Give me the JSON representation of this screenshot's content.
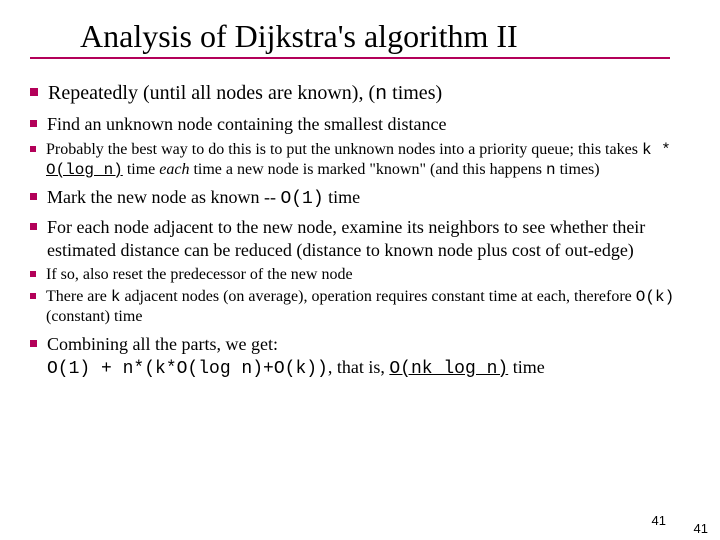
{
  "colors": {
    "bullet": "#b30059",
    "underline": "#b30059",
    "text": "#000000",
    "background": "#ffffff"
  },
  "title": "Analysis of Dijkstra's algorithm II",
  "page_number_inner": "41",
  "page_number_outer": "41",
  "b1": {
    "pre": "Repeatedly (until all nodes are known), (",
    "code": "n",
    "post": " times)"
  },
  "b2a": "Find an unknown node containing the smallest distance",
  "b3a": {
    "pre": "Probably the best way to do this is to put the unknown nodes into a priority queue; this takes ",
    "code1": "k * ",
    "code1u": "O(log n)",
    "mid": " time ",
    "em": "each",
    "post1": " time a new node is marked \"known\" (and this happens ",
    "code2": "n",
    "post2": " times)"
  },
  "b2b": {
    "pre": "Mark the new node as known -- ",
    "code": "O(1)",
    "post": " time"
  },
  "b2c": "For each node adjacent to the new node, examine its neighbors to see whether their estimated distance can be reduced (distance to known node plus cost of out-edge)",
  "b3b": "If so, also reset the predecessor of the new node",
  "b3c": {
    "pre": "There are ",
    "code1": "k",
    "mid": " adjacent nodes (on average), operation requires constant time at each, therefore ",
    "code2": "O(k)",
    "post": " (constant) time"
  },
  "b2d": {
    "line1": "Combining all the parts, we get:",
    "code": "O(1) + n*(k*O(log n)+O(k))",
    "mid": ", that is, ",
    "codeU": "O(nk log n)",
    "post": " time"
  }
}
